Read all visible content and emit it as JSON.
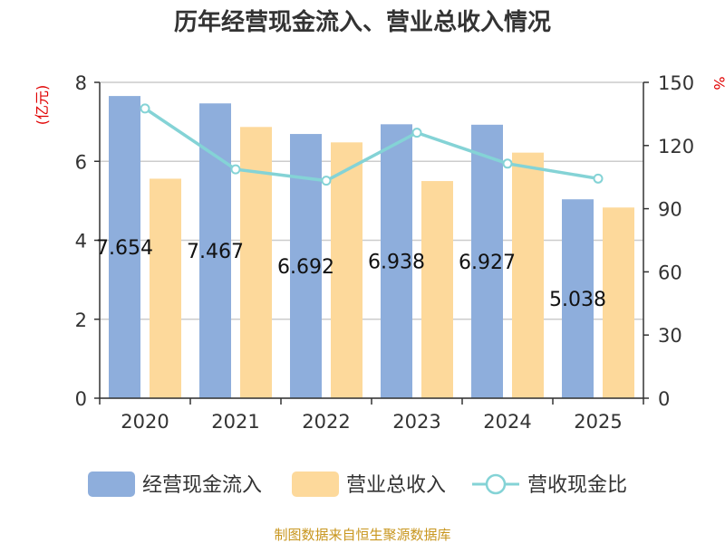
{
  "chart_data": {
    "type": "bar",
    "title": "历年经营现金流入、营业总收入情况",
    "categories": [
      "2020",
      "2021",
      "2022",
      "2023",
      "2024",
      "2025"
    ],
    "series": [
      {
        "name": "经营现金流入",
        "type": "bar",
        "axis": "left",
        "color": "#8eaedc",
        "values": [
          7.654,
          7.467,
          6.692,
          6.938,
          6.927,
          5.038
        ],
        "labels": [
          "7.654",
          "7.467",
          "6.692",
          "6.938",
          "6.927",
          "5.038"
        ]
      },
      {
        "name": "营业总收入",
        "type": "bar",
        "axis": "left",
        "color": "#fdd99b",
        "values": [
          5.56,
          6.87,
          6.48,
          5.5,
          6.22,
          4.83
        ]
      },
      {
        "name": "营收现金比",
        "type": "line",
        "axis": "right",
        "color": "#84d3d6",
        "values": [
          137.6,
          108.7,
          103.3,
          126.1,
          111.4,
          104.3
        ]
      }
    ],
    "y_left": {
      "label": "(亿元)",
      "min": 0,
      "max": 8,
      "ticks": [
        "0",
        "2",
        "4",
        "6",
        "8"
      ]
    },
    "y_right": {
      "label": "%",
      "min": 0,
      "max": 150,
      "ticks": [
        "0",
        "30",
        "60",
        "90",
        "120",
        "150"
      ]
    },
    "grid": true,
    "legend": "bottom"
  },
  "source": "制图数据来自恒生聚源数据库"
}
